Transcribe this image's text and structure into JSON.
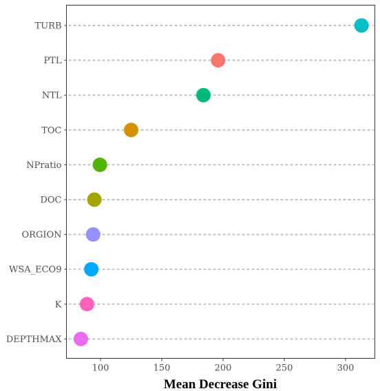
{
  "chart_data": {
    "type": "scatter",
    "orientation": "horizontal-dotplot",
    "xlabel": "Mean Decrease Gini",
    "ylabel": "",
    "xlim": [
      72,
      318
    ],
    "x_ticks": [
      100,
      150,
      200,
      250,
      300
    ],
    "grid": "dotted horizontal guide lines per category",
    "legend": "none",
    "categories": [
      "TURB",
      "PTL",
      "NTL",
      "TOC",
      "NPratio",
      "DOC",
      "ORGION",
      "WSA_ECO9",
      "K",
      "DEPTHMAX"
    ],
    "values": [
      313,
      196,
      184,
      125,
      99.5,
      95,
      94,
      92.5,
      89,
      84
    ],
    "colors": [
      "#00BFC4",
      "#F8766D",
      "#00BA7E",
      "#D39200",
      "#53B400",
      "#A3A500",
      "#9590FF",
      "#00A9FF",
      "#FF62BC",
      "#E76BF3"
    ]
  }
}
